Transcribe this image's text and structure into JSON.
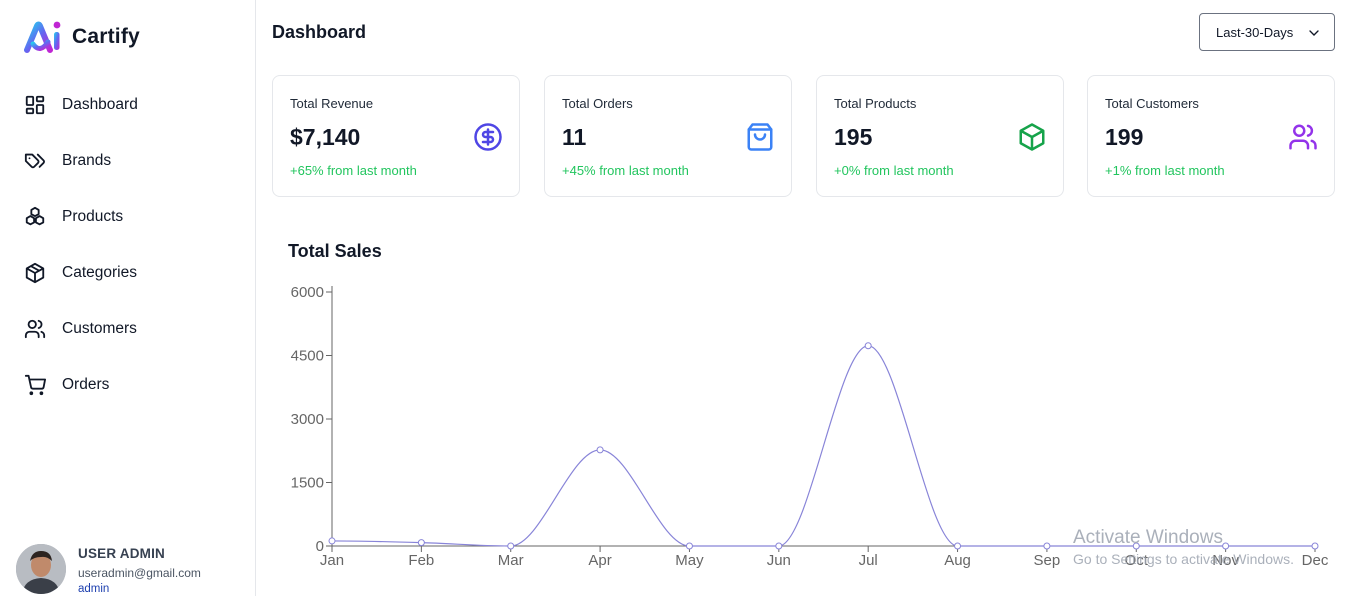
{
  "app": {
    "name": "Cartify"
  },
  "sidebar": {
    "items": [
      {
        "label": "Dashboard",
        "icon": "dashboard-grid-icon"
      },
      {
        "label": "Brands",
        "icon": "tags-icon"
      },
      {
        "label": "Products",
        "icon": "boxes-icon"
      },
      {
        "label": "Categories",
        "icon": "cube-icon"
      },
      {
        "label": "Customers",
        "icon": "users-icon"
      },
      {
        "label": "Orders",
        "icon": "cart-icon"
      }
    ]
  },
  "user": {
    "name": "USER ADMIN",
    "email": "useradmin@gmail.com",
    "role": "admin"
  },
  "header": {
    "title": "Dashboard",
    "range": "Last-30-Days"
  },
  "stats": [
    {
      "title": "Total Revenue",
      "value": "$7,140",
      "change": "+65% from last month",
      "icon": "dollar-icon",
      "color": "#4f46e5"
    },
    {
      "title": "Total Orders",
      "value": "11",
      "change": "+45% from last month",
      "icon": "shopping-bag-icon",
      "color": "#3b82f6"
    },
    {
      "title": "Total Products",
      "value": "195",
      "change": "+0% from last month",
      "icon": "package-icon",
      "color": "#16a34a"
    },
    {
      "title": "Total Customers",
      "value": "199",
      "change": "+1% from last month",
      "icon": "users-icon",
      "color": "#9333ea"
    }
  ],
  "chart_title": "Total Sales",
  "chart_data": {
    "type": "line",
    "categories": [
      "Jan",
      "Feb",
      "Mar",
      "Apr",
      "May",
      "Jun",
      "Jul",
      "Aug",
      "Sep",
      "Oct",
      "Nov",
      "Dec"
    ],
    "values": [
      120,
      80,
      0,
      2270,
      0,
      0,
      4730,
      0,
      0,
      0,
      0,
      0
    ],
    "yticks": [
      0,
      1500,
      3000,
      4500,
      6000
    ],
    "ylim": [
      0,
      6000
    ],
    "grid": false,
    "color": "#8884d8"
  },
  "watermark": {
    "line1": "Activate Windows",
    "line2": "Go to Settings to activate Windows."
  }
}
